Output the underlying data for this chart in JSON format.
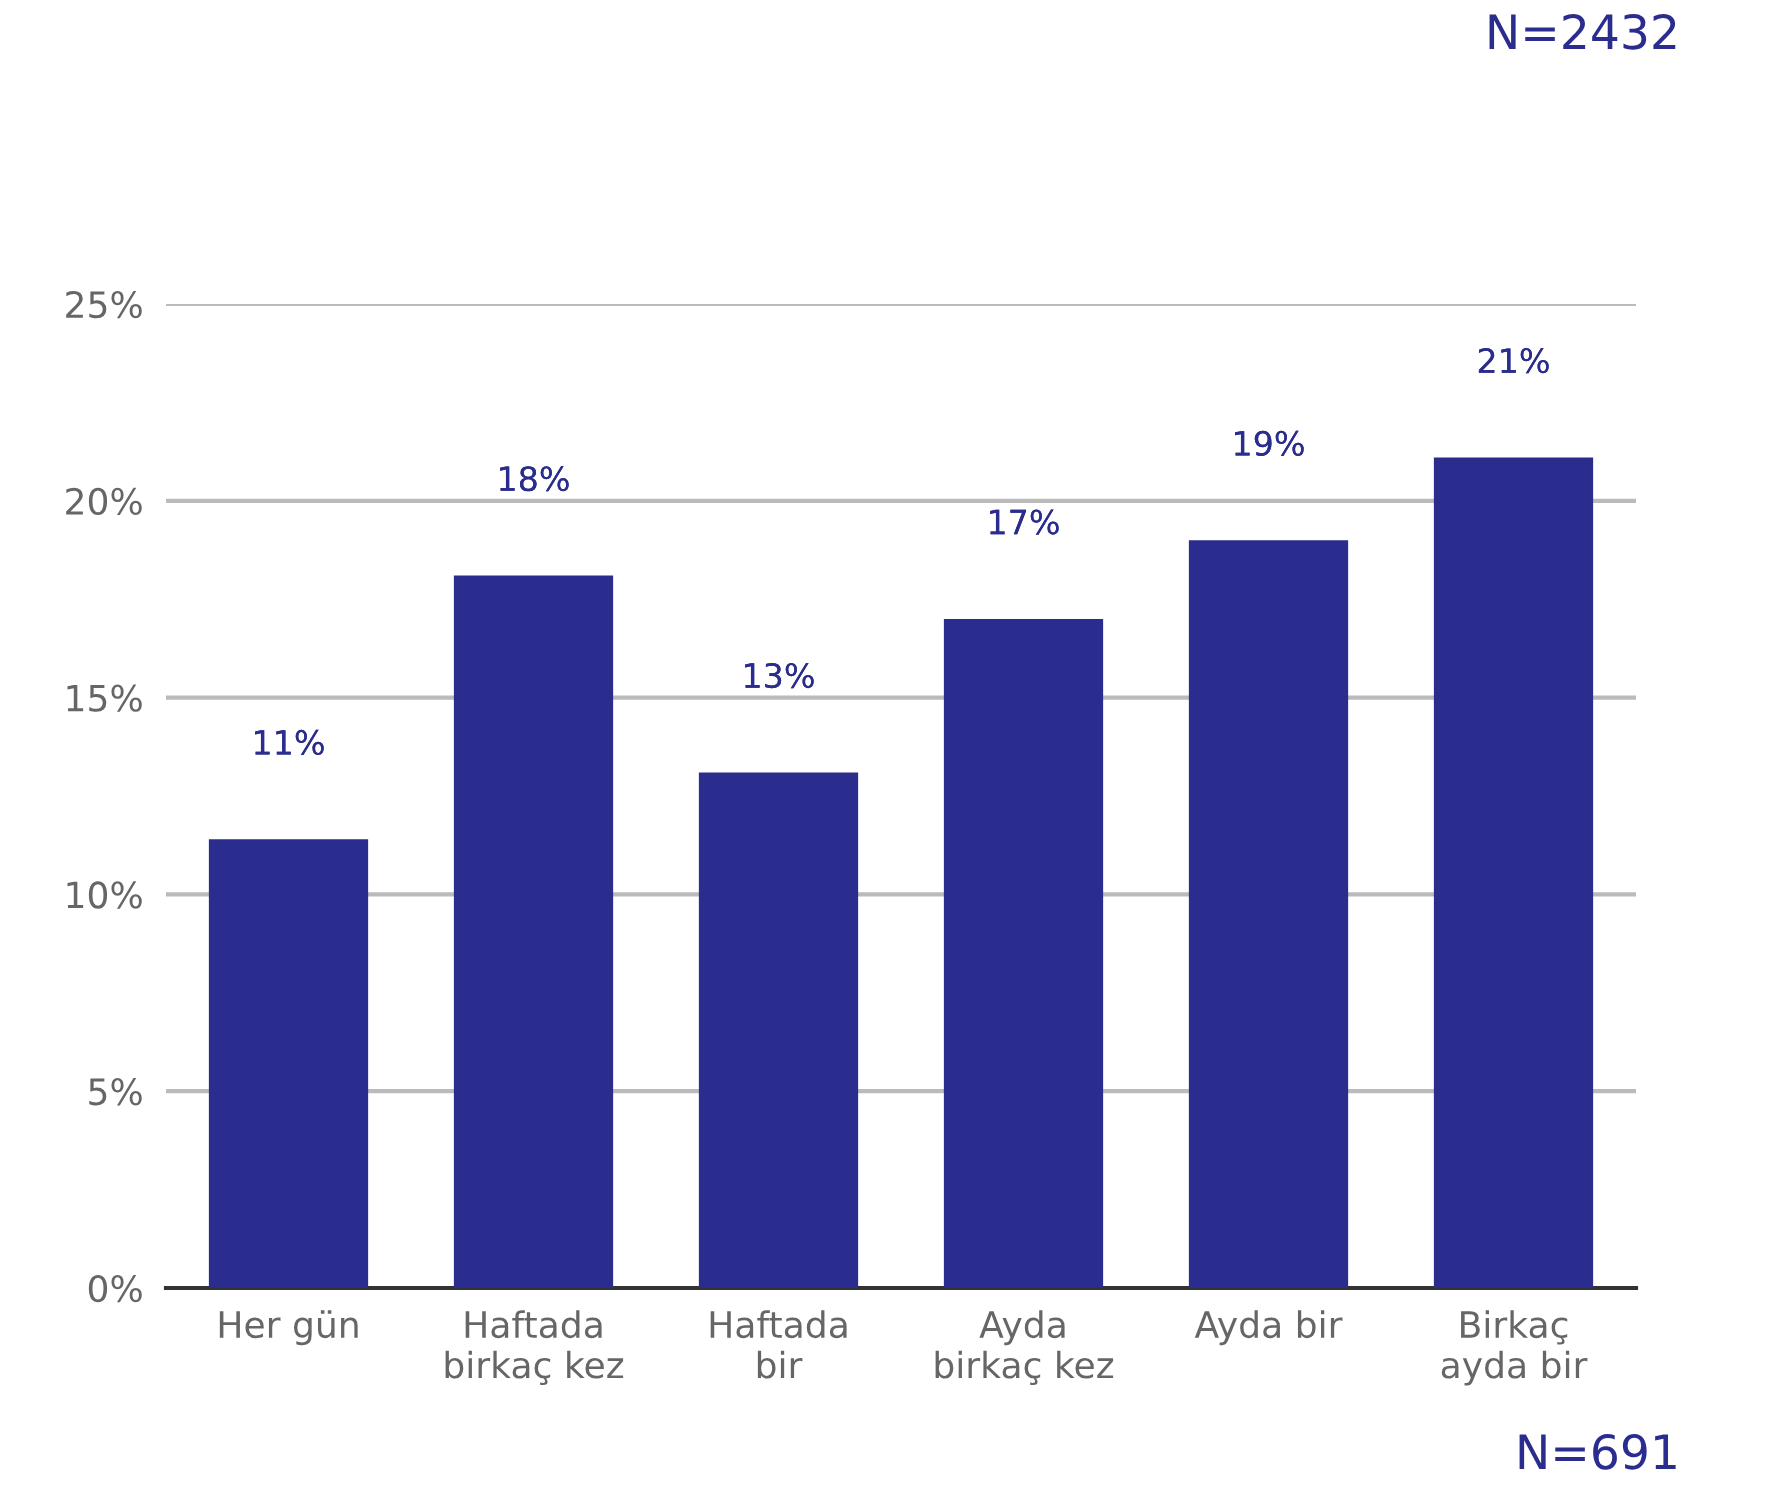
{
  "chart_data": {
    "type": "bar",
    "categories": [
      "Her gün",
      "Haftada\nbirkaç kez",
      "Haftada\nbir",
      "Ayda\nbirkaç kez",
      "Ayda bir",
      "Birkaç\nayda bir"
    ],
    "values": [
      11.4,
      18.1,
      13.1,
      17.0,
      19.0,
      21.1
    ],
    "value_labels": [
      "11%",
      "18%",
      "13%",
      "17%",
      "19%",
      "21%"
    ],
    "color": "#2b2d8e",
    "ylim": [
      0,
      25
    ],
    "yticks": [
      {
        "value": 0,
        "label": "0%"
      },
      {
        "value": 5,
        "label": "5%"
      },
      {
        "value": 10,
        "label": "10%"
      },
      {
        "value": 15,
        "label": "15%"
      },
      {
        "value": 20,
        "label": "20%"
      },
      {
        "value": 25,
        "label": "25%"
      }
    ],
    "grid": "y",
    "annotations": [
      "N=2432",
      "N=691"
    ]
  }
}
